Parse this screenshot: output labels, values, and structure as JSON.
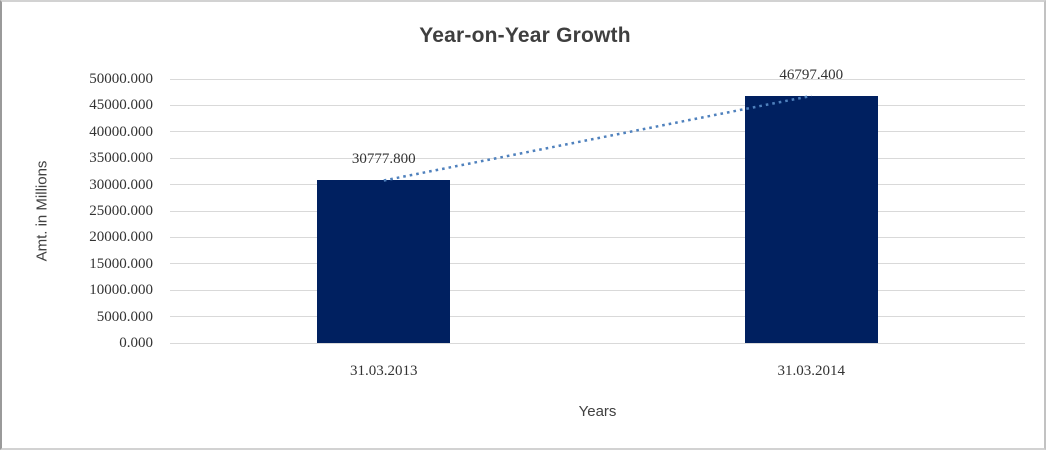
{
  "chart_data": {
    "type": "bar",
    "title": "Year-on-Year Growth",
    "xlabel": "Years",
    "ylabel": "Amt. in Millions",
    "categories": [
      "31.03.2013",
      "31.03.2014"
    ],
    "values": [
      30777.8,
      46797.4
    ],
    "data_labels": [
      "30777.800",
      "46797.400"
    ],
    "ylim": [
      0,
      50000
    ],
    "ytick_step": 5000,
    "ytick_labels": [
      "0.000",
      "5000.000",
      "10000.000",
      "15000.000",
      "20000.000",
      "25000.000",
      "30000.000",
      "35000.000",
      "40000.000",
      "45000.000",
      "50000.000"
    ],
    "grid": true,
    "legend": "none",
    "trendline": {
      "type": "linear",
      "style": "dotted",
      "color": "#4F81BD"
    },
    "colors": {
      "bar": "#002060",
      "gridline": "#D9D9D9",
      "trendline": "#4F81BD",
      "title_text": "#3F3F3F",
      "tick_text": "#333333",
      "background": "#FFFFFF",
      "frame_border": "#D2D2D2"
    }
  }
}
